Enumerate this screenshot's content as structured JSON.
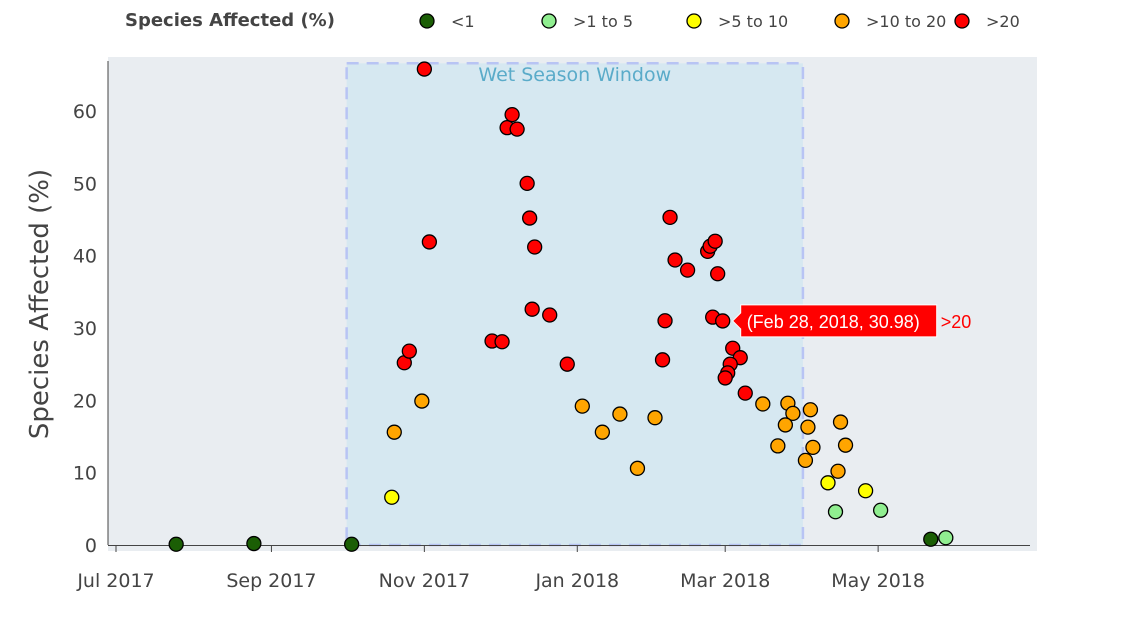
{
  "chart_data": {
    "type": "scatter",
    "title": "",
    "xlabel": "",
    "ylabel": "Species Affected (%)",
    "xlim": [
      "2017-06-28",
      "2018-07-03"
    ],
    "ylim": [
      -0.8,
      67.5
    ],
    "x_ticks": [
      {
        "date": "2017-07-01",
        "label": "Jul 2017"
      },
      {
        "date": "2017-09-01",
        "label": "Sep 2017"
      },
      {
        "date": "2017-11-01",
        "label": "Nov 2017"
      },
      {
        "date": "2018-01-01",
        "label": "Jan 2018"
      },
      {
        "date": "2018-03-01",
        "label": "Mar 2018"
      },
      {
        "date": "2018-05-01",
        "label": "May 2018"
      }
    ],
    "y_ticks": [
      0,
      10,
      20,
      30,
      40,
      50,
      60
    ],
    "grid": false,
    "legend": {
      "title": "Species Affected (%)",
      "placement": "top",
      "entries": [
        {
          "name": "<1",
          "color": "#1b5e05"
        },
        {
          "name": ">1 to 5",
          "color": "#90ee90"
        },
        {
          "name": ">5 to 10",
          "color": "#ffff00"
        },
        {
          "name": ">10 to 20",
          "color": "#ffa500"
        },
        {
          "name": ">20",
          "color": "#ff0000"
        }
      ]
    },
    "background": "#e9edf1",
    "shape": {
      "label": "Wet Season Window",
      "x0": "2017-10-01",
      "x1": "2018-04-01",
      "y0": 0,
      "y1": 66.6,
      "fill": "#d6e8f1",
      "border": "#b8c4f4",
      "label_color": "#5aabc9"
    },
    "hover": {
      "text": "(Feb 28, 2018, 30.98)",
      "series": ">20",
      "x": "2018-02-28",
      "y": 30.98
    },
    "series": [
      {
        "name": "<1",
        "points": [
          [
            "2017-07-25",
            0.1
          ],
          [
            "2017-08-25",
            0.2
          ],
          [
            "2017-10-03",
            0.1
          ],
          [
            "2018-05-22",
            0.8
          ]
        ]
      },
      {
        "name": ">1 to 5",
        "points": [
          [
            "2018-04-14",
            4.6
          ],
          [
            "2018-05-02",
            4.8
          ],
          [
            "2018-05-28",
            1.0
          ]
        ]
      },
      {
        "name": ">5 to 10",
        "points": [
          [
            "2017-10-19",
            6.6
          ],
          [
            "2018-04-11",
            8.6
          ],
          [
            "2018-04-26",
            7.5
          ]
        ]
      },
      {
        "name": ">10 to 20",
        "points": [
          [
            "2017-10-20",
            15.6
          ],
          [
            "2017-10-31",
            19.9
          ],
          [
            "2018-01-03",
            19.2
          ],
          [
            "2018-01-11",
            15.6
          ],
          [
            "2018-01-18",
            18.1
          ],
          [
            "2018-01-25",
            10.6
          ],
          [
            "2018-02-01",
            17.6
          ],
          [
            "2018-03-16",
            19.5
          ],
          [
            "2018-03-26",
            19.6
          ],
          [
            "2018-03-28",
            18.2
          ],
          [
            "2018-04-04",
            18.7
          ],
          [
            "2018-03-25",
            16.6
          ],
          [
            "2018-04-03",
            16.3
          ],
          [
            "2018-04-16",
            17.0
          ],
          [
            "2018-04-18",
            13.8
          ],
          [
            "2018-03-22",
            13.7
          ],
          [
            "2018-04-05",
            13.5
          ],
          [
            "2018-04-02",
            11.7
          ],
          [
            "2018-04-15",
            10.2
          ]
        ]
      },
      {
        "name": ">20",
        "points": [
          [
            "2017-10-24",
            25.2
          ],
          [
            "2017-10-26",
            26.8
          ],
          [
            "2017-11-01",
            65.8
          ],
          [
            "2017-11-03",
            41.9
          ],
          [
            "2017-11-28",
            28.2
          ],
          [
            "2017-12-02",
            28.1
          ],
          [
            "2017-12-04",
            57.7
          ],
          [
            "2017-12-06",
            59.5
          ],
          [
            "2017-12-08",
            57.5
          ],
          [
            "2017-12-12",
            50.0
          ],
          [
            "2017-12-13",
            45.2
          ],
          [
            "2017-12-15",
            41.2
          ],
          [
            "2017-12-14",
            32.6
          ],
          [
            "2017-12-21",
            31.8
          ],
          [
            "2017-12-28",
            25.0
          ],
          [
            "2018-02-04",
            25.6
          ],
          [
            "2018-02-05",
            31.0
          ],
          [
            "2018-02-07",
            45.3
          ],
          [
            "2018-02-09",
            39.4
          ],
          [
            "2018-02-14",
            38.0
          ],
          [
            "2018-02-22",
            40.6
          ],
          [
            "2018-02-23",
            41.3
          ],
          [
            "2018-02-25",
            42.0
          ],
          [
            "2018-02-26",
            37.5
          ],
          [
            "2018-02-24",
            31.5
          ],
          [
            "2018-02-28",
            30.98
          ],
          [
            "2018-03-04",
            27.2
          ],
          [
            "2018-03-07",
            25.9
          ],
          [
            "2018-03-03",
            25.0
          ],
          [
            "2018-03-02",
            23.8
          ],
          [
            "2018-03-01",
            23.1
          ],
          [
            "2018-03-09",
            21.0
          ]
        ]
      }
    ]
  }
}
